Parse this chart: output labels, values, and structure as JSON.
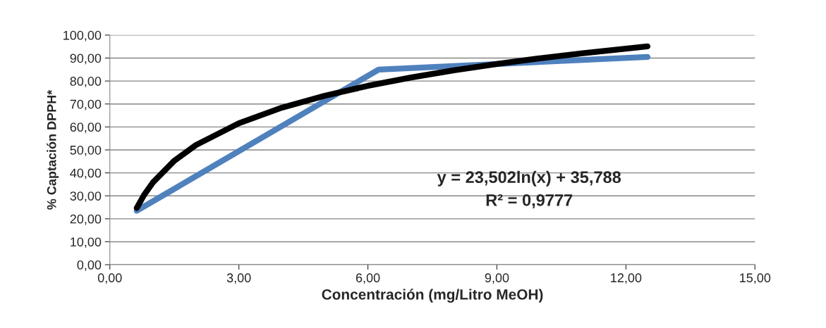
{
  "chart_data": {
    "type": "line",
    "xlabel": "Concentración (mg/Litro MeOH)",
    "ylabel": "% Captación DPPH*",
    "xlim": [
      0,
      15
    ],
    "xticks": [
      {
        "value": 0,
        "label": "0,00"
      },
      {
        "value": 3,
        "label": "3,00"
      },
      {
        "value": 6,
        "label": "6,00"
      },
      {
        "value": 9,
        "label": "9,00"
      },
      {
        "value": 12,
        "label": "12,00"
      },
      {
        "value": 15,
        "label": "15,00"
      }
    ],
    "ylim": [
      0,
      100
    ],
    "yticks": [
      {
        "value": 0,
        "label": "0,00"
      },
      {
        "value": 10,
        "label": "10,00"
      },
      {
        "value": 20,
        "label": "20,00"
      },
      {
        "value": 30,
        "label": "30,00"
      },
      {
        "value": 40,
        "label": "40,00"
      },
      {
        "value": 50,
        "label": "50,00"
      },
      {
        "value": 60,
        "label": "60,00"
      },
      {
        "value": 70,
        "label": "70,00"
      },
      {
        "value": 80,
        "label": "80,00"
      },
      {
        "value": 90,
        "label": "90,00"
      },
      {
        "value": 100,
        "label": "100,00"
      }
    ],
    "grid": "y",
    "legend": false,
    "marker": "none",
    "line_style": "solid",
    "series": [
      {
        "color": "#4f81bd",
        "x": [
          0.625,
          6.25,
          12.5
        ],
        "values": [
          23.5,
          85.0,
          90.5
        ]
      },
      {
        "color": "#000000",
        "x": [
          0.625,
          0.8,
          1,
          1.5,
          2,
          3,
          4,
          5,
          6,
          7,
          8,
          9,
          10,
          11,
          12.5
        ],
        "values": [
          24.7,
          30.5,
          35.8,
          45.3,
          52.1,
          61.6,
          68.4,
          73.6,
          77.9,
          81.5,
          84.7,
          87.4,
          89.9,
          92.1,
          95.1
        ]
      }
    ],
    "annotations": [
      "y = 23,502ln(x) + 35,788",
      "R² = 0,9777"
    ]
  }
}
